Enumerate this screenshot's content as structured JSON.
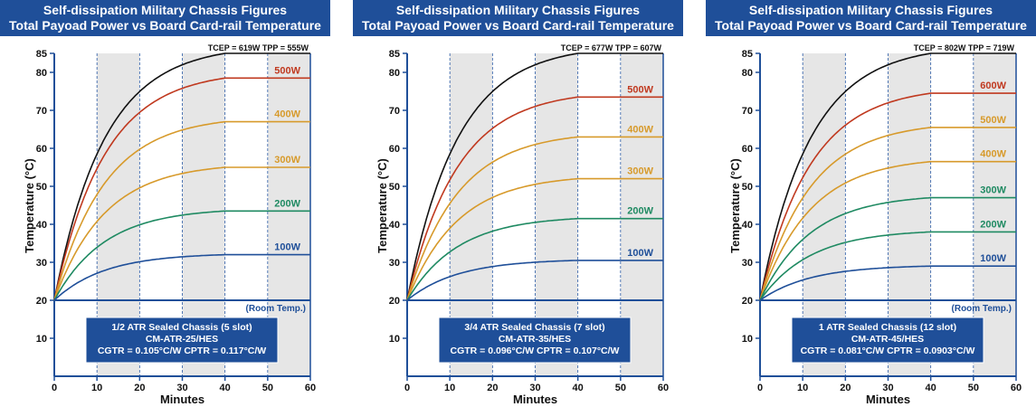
{
  "panels": [
    {
      "title_line1": "Self-dissipation Military Chassis Figures",
      "title_line2": "Total Payoad Power vs Board Card-rail Temperature",
      "chart_data": {
        "type": "line",
        "xlabel": "Minutes",
        "ylabel": "Temperature (°C)",
        "xlim": [
          0,
          60
        ],
        "ylim": [
          0,
          85
        ],
        "x_ticks": [
          0,
          10,
          20,
          30,
          40,
          50,
          60
        ],
        "y_ticks": [
          10,
          20,
          30,
          40,
          50,
          60,
          70,
          80,
          85
        ],
        "shaded_bands": [
          [
            10,
            20
          ],
          [
            30,
            40
          ],
          [
            50,
            60
          ]
        ],
        "room_temp": {
          "value": 20,
          "label": "(Room Temp.)"
        },
        "top_annotation": "TCEP = 619W  TPP = 555W",
        "series": [
          {
            "name": "TCEP",
            "label": "",
            "plateau": 85,
            "color": "#111111"
          },
          {
            "name": "500W",
            "label": "500W",
            "plateau": 78.5,
            "color": "#c0391f"
          },
          {
            "name": "400W",
            "label": "400W",
            "plateau": 67,
            "color": "#d79a2b"
          },
          {
            "name": "300W",
            "label": "300W",
            "plateau": 55,
            "color": "#d79a2b"
          },
          {
            "name": "200W",
            "label": "200W",
            "plateau": 43.5,
            "color": "#1f8a62"
          },
          {
            "name": "100W",
            "label": "100W",
            "plateau": 32,
            "color": "#1f4f99"
          }
        ],
        "info_box": [
          "1/2 ATR Sealed Chassis (5 slot)",
          "CM-ATR-25/HES",
          "CGTR = 0.105°C/W   CPTR = 0.117°C/W"
        ]
      }
    },
    {
      "title_line1": "Self-dissipation Military Chassis Figures",
      "title_line2": "Total Payoad Power vs Board Card-rail Temperature",
      "chart_data": {
        "type": "line",
        "xlabel": "Minutes",
        "ylabel": "Temperature (°C)",
        "xlim": [
          0,
          60
        ],
        "ylim": [
          0,
          85
        ],
        "x_ticks": [
          0,
          10,
          20,
          30,
          40,
          50,
          60
        ],
        "y_ticks": [
          10,
          20,
          30,
          40,
          50,
          60,
          70,
          80,
          85
        ],
        "shaded_bands": [
          [
            10,
            20
          ],
          [
            30,
            40
          ],
          [
            50,
            60
          ]
        ],
        "room_temp": {
          "value": 20,
          "label": ""
        },
        "top_annotation": "TCEP = 677W  TPP = 607W",
        "series": [
          {
            "name": "TCEP",
            "label": "",
            "plateau": 85,
            "color": "#111111"
          },
          {
            "name": "500W",
            "label": "500W",
            "plateau": 73.5,
            "color": "#c0391f"
          },
          {
            "name": "400W",
            "label": "400W",
            "plateau": 63,
            "color": "#d79a2b"
          },
          {
            "name": "300W",
            "label": "300W",
            "plateau": 52,
            "color": "#d79a2b"
          },
          {
            "name": "200W",
            "label": "200W",
            "plateau": 41.5,
            "color": "#1f8a62"
          },
          {
            "name": "100W",
            "label": "100W",
            "plateau": 30.5,
            "color": "#1f4f99"
          }
        ],
        "info_box": [
          "3/4 ATR Sealed Chassis (7 slot)",
          "CM-ATR-35/HES",
          "CGTR = 0.096°C/W   CPTR = 0.107°C/W"
        ]
      }
    },
    {
      "title_line1": "Self-dissipation Military Chassis Figures",
      "title_line2": "Total Payoad Power vs Board Card-rail Temperature",
      "chart_data": {
        "type": "line",
        "xlabel": "Minutes",
        "ylabel": "Temperature (°C)",
        "xlim": [
          0,
          60
        ],
        "ylim": [
          0,
          85
        ],
        "x_ticks": [
          0,
          10,
          20,
          30,
          40,
          50,
          60
        ],
        "y_ticks": [
          10,
          20,
          30,
          40,
          50,
          60,
          70,
          80,
          85
        ],
        "shaded_bands": [
          [
            10,
            20
          ],
          [
            30,
            40
          ],
          [
            50,
            60
          ]
        ],
        "room_temp": {
          "value": 20,
          "label": "(Room Temp.)"
        },
        "top_annotation": "TCEP = 802W  TPP = 719W",
        "series": [
          {
            "name": "TCEP",
            "label": "",
            "plateau": 85,
            "color": "#111111"
          },
          {
            "name": "600W",
            "label": "600W",
            "plateau": 74.5,
            "color": "#c0391f"
          },
          {
            "name": "500W",
            "label": "500W",
            "plateau": 65.5,
            "color": "#d79a2b"
          },
          {
            "name": "400W",
            "label": "400W",
            "plateau": 56.5,
            "color": "#d79a2b"
          },
          {
            "name": "300W",
            "label": "300W",
            "plateau": 47,
            "color": "#1f8a62"
          },
          {
            "name": "200W",
            "label": "200W",
            "plateau": 38,
            "color": "#1f8a62"
          },
          {
            "name": "100W",
            "label": "100W",
            "plateau": 29,
            "color": "#1f4f99"
          }
        ],
        "info_box": [
          "1 ATR Sealed Chassis (12 slot)",
          "CM-ATR-45/HES",
          "CGTR = 0.081°C/W   CPTR = 0.0903°C/W"
        ]
      }
    }
  ]
}
